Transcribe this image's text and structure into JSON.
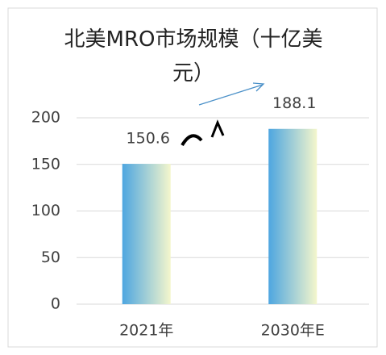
{
  "chart_data": {
    "type": "bar",
    "title": "北美MRO市场规模（十亿美元）",
    "categories": [
      "2021年",
      "2030年E"
    ],
    "values": [
      150.6,
      188.1
    ],
    "ylim": [
      0,
      200
    ],
    "yticks": [
      0,
      50,
      100,
      150,
      200
    ],
    "grid": true,
    "color": [
      "#4ea6e0",
      "#f4f6cc"
    ]
  }
}
